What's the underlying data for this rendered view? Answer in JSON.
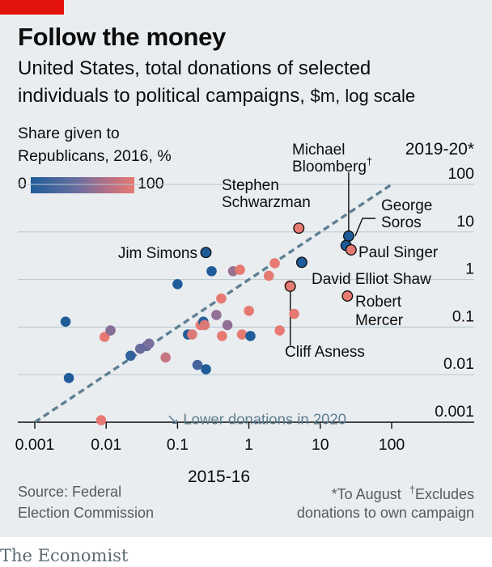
{
  "header": {
    "title": "Follow the money",
    "subtitle_line1": "United States, total donations of selected",
    "subtitle_line2": "individuals to political campaigns,",
    "subtitle_unit": "$m, log scale"
  },
  "legend": {
    "title_line1": "Share given to",
    "title_line2": "Republicans, 2016, %",
    "min_label": "0",
    "max_label": "100",
    "color_low": "#1f5c99",
    "color_mid": "#7a6e9c",
    "color_high": "#e67a73"
  },
  "footer": {
    "source_line1": "Source: Federal",
    "source_line2": "Election Commission",
    "note_line1": "*To August",
    "note_line2_prefix": "Excludes",
    "note_line2_dagger": "†",
    "note_line3": "donations to own campaign",
    "brand": "The Economist"
  },
  "chart_data": {
    "type": "scatter",
    "xlabel": "2015-16",
    "ylabel": "2019-20*",
    "x_scale": "log",
    "y_scale": "log",
    "xlim": [
      0.001,
      100
    ],
    "ylim": [
      0.001,
      100
    ],
    "x_ticks": [
      0.001,
      0.01,
      0.1,
      1,
      10,
      100
    ],
    "x_tick_labels": [
      "0.001",
      "0.01",
      "0.1",
      "1",
      "10",
      "100"
    ],
    "y_ticks": [
      0.001,
      0.01,
      0.1,
      1,
      10,
      100
    ],
    "y_tick_labels": [
      "0.001",
      "0.01",
      "0.1",
      "1",
      "10",
      "100"
    ],
    "grid": "horizontal",
    "reference_line": {
      "label": "Lower donations in 2020",
      "arrow_glyph": "↘",
      "points": [
        [
          0.001,
          0.001
        ],
        [
          100,
          100
        ]
      ],
      "style": "dashed",
      "color": "#5e7f92"
    },
    "points": [
      {
        "x": 0.0027,
        "y": 0.13,
        "rep_share": 0
      },
      {
        "x": 0.003,
        "y": 0.0085,
        "rep_share": 0
      },
      {
        "x": 0.0085,
        "y": 0.0011,
        "rep_share": 100
      },
      {
        "x": 0.0095,
        "y": 0.062,
        "rep_share": 100
      },
      {
        "x": 0.0115,
        "y": 0.085,
        "rep_share": 55
      },
      {
        "x": 0.022,
        "y": 0.025,
        "rep_share": 10
      },
      {
        "x": 0.03,
        "y": 0.035,
        "rep_share": 40
      },
      {
        "x": 0.037,
        "y": 0.04,
        "rep_share": 35
      },
      {
        "x": 0.04,
        "y": 0.045,
        "rep_share": 50
      },
      {
        "x": 0.068,
        "y": 0.023,
        "rep_share": 85
      },
      {
        "x": 0.1,
        "y": 0.8,
        "rep_share": 0
      },
      {
        "x": 0.14,
        "y": 0.07,
        "rep_share": 0
      },
      {
        "x": 0.16,
        "y": 0.07,
        "rep_share": 95
      },
      {
        "x": 0.19,
        "y": 0.016,
        "rep_share": 20
      },
      {
        "x": 0.21,
        "y": 0.11,
        "rep_share": 100
      },
      {
        "x": 0.23,
        "y": 0.13,
        "rep_share": 5
      },
      {
        "x": 0.24,
        "y": 0.11,
        "rep_share": 95
      },
      {
        "x": 0.25,
        "y": 0.013,
        "rep_share": 0
      },
      {
        "x": 0.3,
        "y": 1.5,
        "rep_share": 0
      },
      {
        "x": 0.35,
        "y": 0.18,
        "rep_share": 60
      },
      {
        "x": 0.41,
        "y": 0.4,
        "rep_share": 100
      },
      {
        "x": 0.42,
        "y": 0.065,
        "rep_share": 100
      },
      {
        "x": 0.5,
        "y": 0.11,
        "rep_share": 60
      },
      {
        "x": 0.6,
        "y": 1.5,
        "rep_share": 65
      },
      {
        "x": 0.75,
        "y": 1.6,
        "rep_share": 100
      },
      {
        "x": 0.8,
        "y": 0.07,
        "rep_share": 100
      },
      {
        "x": 1.0,
        "y": 0.22,
        "rep_share": 100
      },
      {
        "x": 1.05,
        "y": 0.065,
        "rep_share": 0
      },
      {
        "x": 1.9,
        "y": 1.2,
        "rep_share": 100
      },
      {
        "x": 2.3,
        "y": 2.2,
        "rep_share": 100
      },
      {
        "x": 2.7,
        "y": 0.085,
        "rep_share": 100
      },
      {
        "x": 3.7,
        "y": 0.75,
        "rep_share": 100
      },
      {
        "x": 4.3,
        "y": 0.19,
        "rep_share": 100
      },
      {
        "x": 5.0,
        "y": 12,
        "rep_share": 100,
        "label": "Stephen Schwarzman"
      },
      {
        "x": 0.25,
        "y": 3.7,
        "rep_share": 0,
        "label": "Jim Simons"
      },
      {
        "x": 5.5,
        "y": 2.3,
        "rep_share": 0,
        "label": "David Elliot Shaw"
      },
      {
        "x": 3.8,
        "y": 0.72,
        "rep_share": 100,
        "label": "Cliff Asness"
      },
      {
        "x": 23,
        "y": 5.2,
        "rep_share": 0,
        "label": "Michael Bloomberg†"
      },
      {
        "x": 25,
        "y": 8.2,
        "rep_share": 0,
        "label": "George Soros"
      },
      {
        "x": 27,
        "y": 4.2,
        "rep_share": 100,
        "label": "Paul Singer"
      },
      {
        "x": 24,
        "y": 0.45,
        "rep_share": 100,
        "label": "Robert Mercer"
      }
    ],
    "annotations": [
      {
        "text": "Jim Simons",
        "lines": [
          "Jim Simons"
        ]
      },
      {
        "text": "Stephen Schwarzman",
        "lines": [
          "Stephen",
          "Schwarzman"
        ]
      },
      {
        "text": "Michael Bloomberg†",
        "lines": [
          "Michael",
          "Bloomberg"
        ]
      },
      {
        "text": "George Soros",
        "lines": [
          "George",
          "Soros"
        ]
      },
      {
        "text": "Paul Singer",
        "lines": [
          "Paul Singer"
        ]
      },
      {
        "text": "David Elliot Shaw",
        "lines": [
          "David Elliot Shaw"
        ]
      },
      {
        "text": "Robert Mercer",
        "lines": [
          "Robert",
          "Mercer"
        ]
      },
      {
        "text": "Cliff Asness",
        "lines": [
          "Cliff Asness"
        ]
      }
    ]
  }
}
